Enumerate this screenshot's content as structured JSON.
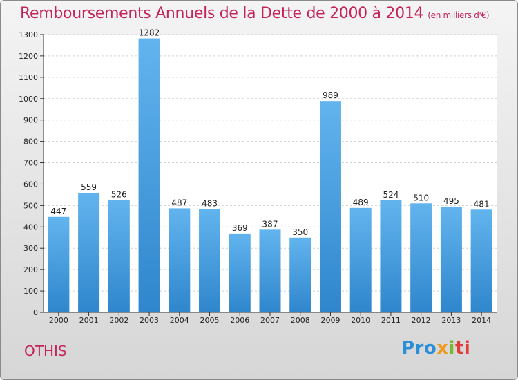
{
  "chart_data": {
    "type": "bar",
    "title": "Remboursements Annuels de la Dette de 2000 à 2014",
    "unit": "(en milliers d'€)",
    "categories": [
      "2000",
      "2001",
      "2002",
      "2003",
      "2004",
      "2005",
      "2006",
      "2007",
      "2008",
      "2009",
      "2010",
      "2011",
      "2012",
      "2013",
      "2014"
    ],
    "values": [
      447,
      559,
      526,
      1282,
      487,
      483,
      369,
      387,
      350,
      989,
      489,
      524,
      510,
      495,
      481
    ],
    "ylim": [
      0,
      1300
    ],
    "yticks": [
      0,
      100,
      200,
      300,
      400,
      500,
      600,
      700,
      800,
      900,
      1000,
      1100,
      1200,
      1300
    ],
    "xlabel": "",
    "ylabel": "",
    "grid": true,
    "bar_color": "#4a9fe0"
  },
  "commune": "OTHIS",
  "logo": {
    "part1": "Pro",
    "part2": "x",
    "part3": "i",
    "part4": "ti"
  }
}
